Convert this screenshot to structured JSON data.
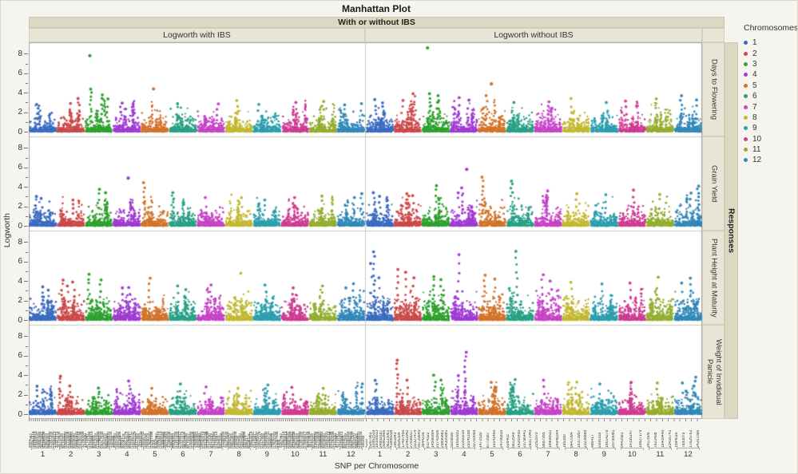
{
  "title": "Manhattan Plot",
  "group_header": "With or without IBS",
  "column_headers": [
    "Logworth with IBS",
    "Logworth without IBS"
  ],
  "row_labels": [
    "Days to Flowering",
    "Grain Yield",
    "Plant Height at Maturity",
    "Weight of Invididual Panicle"
  ],
  "responses_label": "Responses",
  "ylabel": "Logworth",
  "xlabel": "SNP per Chromosome",
  "legend": {
    "title": "Chromosomes",
    "items": [
      {
        "label": "1",
        "color": "#3c6cc0"
      },
      {
        "label": "2",
        "color": "#cc4a4a"
      },
      {
        "label": "3",
        "color": "#2fa12f"
      },
      {
        "label": "4",
        "color": "#a03cd1"
      },
      {
        "label": "5",
        "color": "#d2742c"
      },
      {
        "label": "6",
        "color": "#2aa186"
      },
      {
        "label": "7",
        "color": "#c644c6"
      },
      {
        "label": "8",
        "color": "#c3b932"
      },
      {
        "label": "9",
        "color": "#2d9fae"
      },
      {
        "label": "10",
        "color": "#cf3d93"
      },
      {
        "label": "11",
        "color": "#95ae30"
      },
      {
        "label": "12",
        "color": "#3289b8"
      }
    ]
  },
  "chart_data": {
    "type": "scatter",
    "title": "Manhattan Plot",
    "facet_columns": [
      "Logworth with IBS",
      "Logworth without IBS"
    ],
    "facet_rows": [
      "Days to Flowering",
      "Grain Yield",
      "Plant Height at Maturity",
      "Weight of Invididual Panicle"
    ],
    "xlabel": "SNP per Chromosome",
    "ylabel": "Logworth",
    "ylim": [
      0,
      8.8
    ],
    "yticks": [
      0,
      2,
      4,
      6,
      8
    ],
    "grid": false,
    "legend_position": "right",
    "chromosomes": [
      "1",
      "2",
      "3",
      "4",
      "5",
      "6",
      "7",
      "8",
      "9",
      "10",
      "11",
      "12"
    ],
    "colors": [
      "#3c6cc0",
      "#cc4a4a",
      "#2fa12f",
      "#a03cd1",
      "#d2742c",
      "#2aa186",
      "#c644c6",
      "#c3b932",
      "#2d9fae",
      "#cf3d93",
      "#95ae30",
      "#3289b8"
    ],
    "x_tick_labels": [
      [
        "4300",
        "5267962",
        "10961519",
        "18108513",
        "24859187",
        "30862866",
        "36223061",
        "41886038"
      ],
      [
        "2961843",
        "9506304",
        "17497450",
        "23402942",
        "27698017",
        "32327474",
        "35729645"
      ],
      [
        "3844235",
        "8174322",
        "14556994",
        "22743506",
        "29896881",
        "34305981"
      ],
      [
        "5029690",
        "16592931",
        "22260210",
        "29145198",
        "32760099"
      ],
      [
        "1471530",
        "8772567",
        "19141460",
        "24706810"
      ],
      [
        "628403",
        "5612549",
        "14265450",
        "22796441",
        "28317040"
      ],
      [
        "2252970",
        "9887955",
        "18908531",
        "24948344"
      ],
      [
        "185280",
        "5447094",
        "16373957",
        "23238888"
      ],
      [
        "486417",
        "9106118",
        "16614278",
        "20799081"
      ],
      [
        "5442581",
        "14195147",
        "19927179"
      ],
      [
        "2417809",
        "7622408",
        "16409440",
        "23416741"
      ],
      [
        "1594016",
        "7693079",
        "17625762",
        "24257096"
      ]
    ],
    "panels": [
      {
        "row": "Days to Flowering",
        "column": "Logworth with IBS",
        "baseline_scale": 0.45,
        "signals": [
          [
            3,
            0.18,
            7.8,
            1
          ],
          [
            3,
            0.22,
            4.4,
            9
          ],
          [
            3,
            0.6,
            3.9,
            6
          ],
          [
            3,
            0.8,
            3.4,
            4
          ],
          [
            5,
            0.45,
            4.4,
            1
          ],
          [
            2,
            0.78,
            3.4,
            7
          ],
          [
            2,
            0.5,
            2.9,
            4
          ],
          [
            1,
            0.3,
            2.8,
            4
          ],
          [
            4,
            0.3,
            3.0,
            5
          ],
          [
            4,
            0.7,
            2.9,
            3
          ],
          [
            6,
            0.3,
            3.0,
            4
          ],
          [
            7,
            0.75,
            2.9,
            4
          ],
          [
            8,
            0.45,
            3.2,
            5
          ],
          [
            9,
            0.2,
            2.8,
            3
          ],
          [
            10,
            0.55,
            3.0,
            4
          ],
          [
            11,
            0.5,
            3.1,
            5
          ],
          [
            12,
            0.3,
            2.9,
            4
          ],
          [
            12,
            0.85,
            3.0,
            3
          ]
        ]
      },
      {
        "row": "Days to Flowering",
        "column": "Logworth without IBS",
        "baseline_scale": 0.5,
        "signals": [
          [
            3,
            0.2,
            8.6,
            1
          ],
          [
            5,
            0.48,
            4.9,
            1
          ],
          [
            2,
            0.72,
            3.9,
            8
          ],
          [
            2,
            0.3,
            3.3,
            4
          ],
          [
            3,
            0.3,
            4.0,
            7
          ],
          [
            3,
            0.55,
            3.8,
            5
          ],
          [
            1,
            0.35,
            3.3,
            5
          ],
          [
            1,
            0.6,
            3.1,
            4
          ],
          [
            4,
            0.35,
            3.5,
            4
          ],
          [
            4,
            0.65,
            3.3,
            3
          ],
          [
            5,
            0.3,
            3.7,
            5
          ],
          [
            6,
            0.25,
            3.0,
            3
          ],
          [
            7,
            0.5,
            3.2,
            4
          ],
          [
            8,
            0.35,
            3.4,
            4
          ],
          [
            9,
            0.6,
            3.0,
            3
          ],
          [
            10,
            0.3,
            3.2,
            4
          ],
          [
            11,
            0.35,
            3.4,
            5
          ],
          [
            12,
            0.25,
            3.7,
            6
          ],
          [
            12,
            0.8,
            3.3,
            4
          ]
        ]
      },
      {
        "row": "Grain Yield",
        "column": "Logworth with IBS",
        "baseline_scale": 0.45,
        "signals": [
          [
            4,
            0.55,
            4.9,
            1
          ],
          [
            5,
            0.13,
            4.5,
            8
          ],
          [
            3,
            0.5,
            3.8,
            6
          ],
          [
            3,
            0.75,
            3.4,
            4
          ],
          [
            6,
            0.15,
            3.5,
            4
          ],
          [
            1,
            0.25,
            3.1,
            5
          ],
          [
            1,
            0.45,
            2.9,
            3
          ],
          [
            2,
            0.55,
            2.8,
            4
          ],
          [
            7,
            0.3,
            2.9,
            3
          ],
          [
            8,
            0.6,
            3.0,
            3
          ],
          [
            9,
            0.4,
            2.8,
            3
          ],
          [
            10,
            0.5,
            2.9,
            3
          ],
          [
            11,
            0.45,
            3.2,
            4
          ],
          [
            12,
            0.88,
            3.3,
            5
          ],
          [
            12,
            0.6,
            2.9,
            3
          ]
        ]
      },
      {
        "row": "Grain Yield",
        "column": "Logworth without IBS",
        "baseline_scale": 0.5,
        "signals": [
          [
            4,
            0.6,
            5.8,
            1
          ],
          [
            5,
            0.15,
            5.0,
            9
          ],
          [
            6,
            0.2,
            4.7,
            9
          ],
          [
            3,
            0.5,
            4.2,
            6
          ],
          [
            4,
            0.45,
            3.9,
            7
          ],
          [
            4,
            0.3,
            3.5,
            4
          ],
          [
            2,
            0.45,
            3.3,
            5
          ],
          [
            2,
            0.7,
            3.1,
            4
          ],
          [
            1,
            0.3,
            3.4,
            6
          ],
          [
            1,
            0.5,
            3.1,
            4
          ],
          [
            7,
            0.45,
            3.6,
            6
          ],
          [
            8,
            0.5,
            3.3,
            4
          ],
          [
            9,
            0.55,
            3.2,
            4
          ],
          [
            10,
            0.55,
            3.7,
            5
          ],
          [
            11,
            0.5,
            3.3,
            4
          ],
          [
            12,
            0.85,
            4.2,
            9
          ],
          [
            12,
            0.6,
            3.5,
            4
          ]
        ]
      },
      {
        "row": "Plant Height at Maturity",
        "column": "Logworth with IBS",
        "baseline_scale": 0.58,
        "signals": [
          [
            3,
            0.15,
            4.7,
            8
          ],
          [
            3,
            0.55,
            4.2,
            6
          ],
          [
            5,
            0.3,
            4.3,
            6
          ],
          [
            8,
            0.55,
            4.8,
            2
          ],
          [
            2,
            0.2,
            4.1,
            7
          ],
          [
            2,
            0.6,
            3.9,
            5
          ],
          [
            2,
            0.4,
            3.5,
            4
          ],
          [
            1,
            0.5,
            3.4,
            5
          ],
          [
            1,
            0.7,
            3.1,
            4
          ],
          [
            4,
            0.35,
            3.3,
            4
          ],
          [
            4,
            0.6,
            3.4,
            4
          ],
          [
            6,
            0.3,
            3.5,
            4
          ],
          [
            6,
            0.6,
            3.2,
            3
          ],
          [
            7,
            0.5,
            3.6,
            5
          ],
          [
            9,
            0.45,
            3.6,
            4
          ],
          [
            10,
            0.4,
            3.3,
            4
          ],
          [
            11,
            0.5,
            3.6,
            4
          ],
          [
            12,
            0.6,
            3.8,
            5
          ],
          [
            12,
            0.3,
            3.3,
            3
          ]
        ]
      },
      {
        "row": "Plant Height at Maturity",
        "column": "Logworth without IBS",
        "baseline_scale": 0.7,
        "signals": [
          [
            1,
            0.3,
            7.0,
            11
          ],
          [
            1,
            0.2,
            5.9,
            4
          ],
          [
            1,
            0.45,
            4.4,
            4
          ],
          [
            6,
            0.38,
            7.2,
            9
          ],
          [
            4,
            0.3,
            6.8,
            7
          ],
          [
            2,
            0.12,
            5.2,
            7
          ],
          [
            2,
            0.45,
            4.9,
            6
          ],
          [
            2,
            0.7,
            4.4,
            4
          ],
          [
            3,
            0.4,
            4.6,
            8
          ],
          [
            3,
            0.7,
            4.2,
            5
          ],
          [
            5,
            0.25,
            4.6,
            7
          ],
          [
            5,
            0.6,
            4.2,
            4
          ],
          [
            7,
            0.3,
            4.7,
            6
          ],
          [
            7,
            0.6,
            4.0,
            4
          ],
          [
            8,
            0.35,
            3.9,
            5
          ],
          [
            9,
            0.4,
            3.7,
            4
          ],
          [
            10,
            0.45,
            3.9,
            4
          ],
          [
            11,
            0.4,
            4.4,
            4
          ],
          [
            12,
            0.6,
            4.3,
            6
          ],
          [
            12,
            0.3,
            3.8,
            4
          ]
        ]
      },
      {
        "row": "Weight of Invididual Panicle",
        "column": "Logworth with IBS",
        "baseline_scale": 0.42,
        "signals": [
          [
            2,
            0.1,
            3.9,
            8
          ],
          [
            2,
            0.5,
            3.0,
            4
          ],
          [
            4,
            0.6,
            3.4,
            6
          ],
          [
            1,
            0.3,
            2.9,
            4
          ],
          [
            3,
            0.5,
            2.8,
            4
          ],
          [
            5,
            0.4,
            2.7,
            3
          ],
          [
            6,
            0.4,
            3.1,
            4
          ],
          [
            7,
            0.3,
            2.8,
            3
          ],
          [
            8,
            0.5,
            2.7,
            3
          ],
          [
            9,
            0.55,
            3.0,
            4
          ],
          [
            10,
            0.4,
            2.8,
            3
          ],
          [
            11,
            0.5,
            2.7,
            3
          ],
          [
            12,
            0.88,
            3.2,
            5
          ]
        ]
      },
      {
        "row": "Weight of Invididual Panicle",
        "column": "Logworth without IBS",
        "baseline_scale": 0.5,
        "signals": [
          [
            2,
            0.12,
            5.6,
            10
          ],
          [
            4,
            0.55,
            6.4,
            11
          ],
          [
            4,
            0.3,
            4.0,
            6
          ],
          [
            1,
            0.35,
            3.6,
            5
          ],
          [
            2,
            0.5,
            3.5,
            4
          ],
          [
            3,
            0.45,
            4.0,
            6
          ],
          [
            3,
            0.7,
            3.5,
            4
          ],
          [
            5,
            0.5,
            3.3,
            4
          ],
          [
            6,
            0.3,
            3.7,
            5
          ],
          [
            7,
            0.35,
            3.5,
            4
          ],
          [
            8,
            0.5,
            3.4,
            4
          ],
          [
            9,
            0.35,
            3.1,
            3
          ],
          [
            10,
            0.45,
            3.4,
            4
          ],
          [
            11,
            0.4,
            3.2,
            4
          ],
          [
            12,
            0.75,
            3.8,
            6
          ],
          [
            12,
            0.3,
            3.2,
            3
          ]
        ]
      }
    ]
  }
}
